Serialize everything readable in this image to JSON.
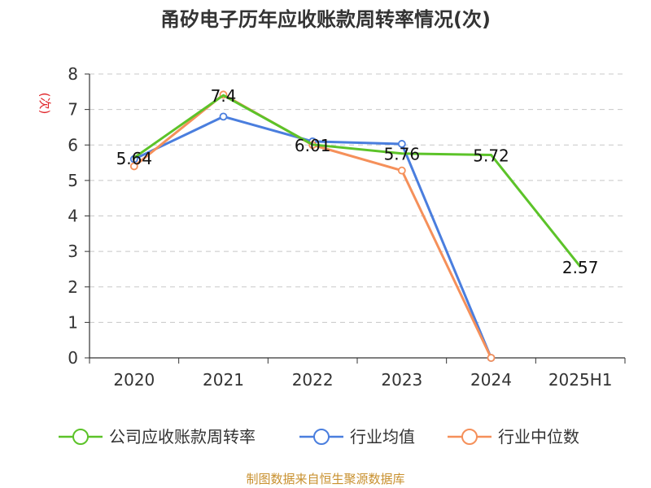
{
  "chart_data": {
    "type": "line",
    "title": "甬矽电子历年应收账款周转率情况(次)",
    "ylabel": "(次)",
    "xlabel": "",
    "categories": [
      "2020",
      "2021",
      "2022",
      "2023",
      "2024",
      "2025H1"
    ],
    "ylim": [
      0,
      8
    ],
    "yticks": [
      "0",
      "1",
      "2",
      "3",
      "4",
      "5",
      "6",
      "7",
      "8"
    ],
    "grid": true,
    "legend_position": "bottom",
    "series": [
      {
        "name": "公司应收账款周转率",
        "color": "#5cc329",
        "values": [
          5.64,
          7.4,
          6.01,
          5.76,
          5.72,
          2.57
        ],
        "labels": [
          "5.64",
          "7.4",
          "6.01",
          "5.76",
          "5.72",
          "2.57"
        ],
        "markers": false
      },
      {
        "name": "行业均值",
        "color": "#4a7ede",
        "values": [
          5.6,
          6.8,
          6.1,
          6.03,
          0,
          null
        ],
        "markers": true
      },
      {
        "name": "行业中位数",
        "color": "#f5905a",
        "values": [
          5.4,
          7.42,
          6.0,
          5.28,
          0,
          null
        ],
        "markers": true
      }
    ]
  },
  "source": "制图数据来自恒生聚源数据库"
}
